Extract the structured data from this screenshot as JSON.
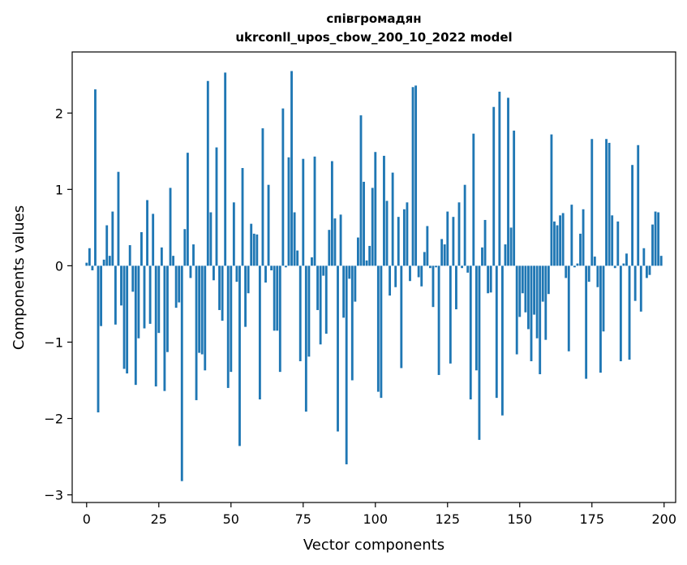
{
  "chart_data": {
    "type": "bar",
    "title_line1": "співгромадян",
    "title_line2": "ukrconll_upos_cbow_200_10_2022 model",
    "xlabel": "Vector components",
    "ylabel": "Components values",
    "xlim": [
      -5,
      204
    ],
    "ylim": [
      -3.1,
      2.8
    ],
    "x_ticks": [
      0,
      25,
      50,
      75,
      100,
      125,
      150,
      175,
      200
    ],
    "x_tick_labels": [
      "0",
      "25",
      "50",
      "75",
      "100",
      "125",
      "150",
      "175",
      "200"
    ],
    "y_ticks": [
      -3,
      -2,
      -1,
      0,
      1,
      2
    ],
    "y_tick_labels": [
      "−3",
      "−2",
      "−1",
      "0",
      "1",
      "2"
    ],
    "grid": false,
    "bar_color": "#1f77b4",
    "values": [
      0.04,
      0.23,
      -0.06,
      2.31,
      -1.92,
      -0.79,
      0.08,
      0.53,
      0.13,
      0.71,
      -0.77,
      1.23,
      -0.52,
      -1.35,
      -1.41,
      0.27,
      -0.34,
      -1.56,
      -0.95,
      0.44,
      -0.82,
      0.86,
      -0.76,
      0.68,
      -1.58,
      -0.88,
      0.24,
      -1.64,
      -1.13,
      1.02,
      0.13,
      -0.55,
      -0.48,
      -2.82,
      0.48,
      1.48,
      -0.16,
      0.28,
      -1.76,
      -1.14,
      -1.16,
      -1.37,
      2.42,
      0.7,
      -0.19,
      1.55,
      -0.58,
      -0.72,
      2.53,
      -1.6,
      -1.39,
      0.83,
      -0.21,
      -2.36,
      1.28,
      -0.8,
      -0.36,
      0.55,
      0.42,
      0.41,
      -1.75,
      1.8,
      -0.22,
      1.06,
      -0.06,
      -0.85,
      -0.85,
      -1.39,
      2.06,
      -0.02,
      1.42,
      2.55,
      0.7,
      0.2,
      -1.25,
      1.4,
      -1.91,
      -1.19,
      0.11,
      1.43,
      -0.58,
      -1.03,
      -0.13,
      -0.89,
      0.47,
      1.37,
      0.62,
      -2.17,
      0.67,
      -0.68,
      -2.6,
      -0.17,
      -1.5,
      -0.47,
      0.37,
      1.97,
      1.1,
      0.07,
      0.26,
      1.02,
      1.49,
      -1.65,
      -1.73,
      1.44,
      0.85,
      -0.39,
      1.22,
      -0.28,
      0.64,
      -1.34,
      0.74,
      0.83,
      -0.2,
      2.34,
      2.36,
      -0.15,
      -0.27,
      0.18,
      0.52,
      -0.03,
      -0.54,
      -0.02,
      -1.43,
      0.35,
      0.28,
      0.71,
      -1.28,
      0.64,
      -0.57,
      0.83,
      -0.03,
      1.06,
      -0.09,
      -1.75,
      1.73,
      -1.37,
      -2.28,
      0.24,
      0.6,
      -0.36,
      -0.35,
      2.08,
      -1.73,
      2.28,
      -1.96,
      0.28,
      2.2,
      0.5,
      1.77,
      -1.16,
      -0.67,
      -0.36,
      -0.61,
      -0.83,
      -1.25,
      -0.64,
      -0.95,
      -1.42,
      -0.47,
      -0.97,
      -0.37,
      1.72,
      0.58,
      0.53,
      0.66,
      0.69,
      -0.16,
      -1.12,
      0.8,
      -0.02,
      0.03,
      0.42,
      0.74,
      -1.48,
      -0.21,
      1.66,
      0.12,
      -0.28,
      -1.4,
      -0.86,
      1.66,
      1.61,
      0.66,
      -0.03,
      0.58,
      -1.25,
      0.03,
      0.16,
      -1.23,
      1.32,
      -0.46,
      1.58,
      -0.6,
      0.23,
      -0.16,
      -0.12,
      0.54,
      0.71,
      0.7,
      0.13
    ]
  }
}
